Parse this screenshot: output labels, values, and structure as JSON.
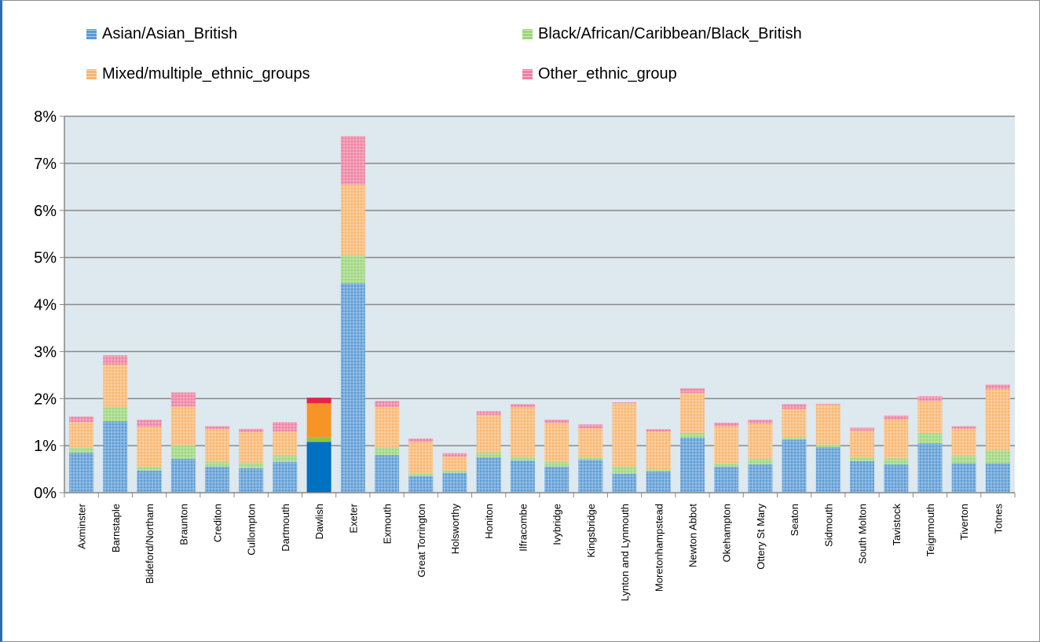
{
  "chart_data": {
    "type": "bar",
    "stacked": true,
    "title": "",
    "xlabel": "",
    "ylabel": "",
    "ylim": [
      0,
      8
    ],
    "y_ticks": [
      "0%",
      "1%",
      "2%",
      "3%",
      "4%",
      "5%",
      "6%",
      "7%",
      "8%"
    ],
    "grid": true,
    "legend_position": "top",
    "categories": [
      "Axminster",
      "Barnstaple",
      "Bideford/Northam",
      "Braunton",
      "Crediton",
      "Cullompton",
      "Dartmouth",
      "Dawlish",
      "Exeter",
      "Exmouth",
      "Great Torrington",
      "Holsworthy",
      "Honiton",
      "Ilfracombe",
      "Ivybridge",
      "Kingsbridge",
      "Lynton and Lynmouth",
      "Moretonhampstead",
      "Newton Abbot",
      "Okehampton",
      "Ottery St Mary",
      "Seaton",
      "Sidmouth",
      "South Molton",
      "Tavistock",
      "Teignmouth",
      "Tiverton",
      "Totnes"
    ],
    "highlighted_category": "Dawlish",
    "series": [
      {
        "name": "Asian/Asian_British",
        "color": "#5b9bd5",
        "solid_color": "#0070c0",
        "values": [
          0.85,
          1.52,
          0.47,
          0.72,
          0.55,
          0.52,
          0.65,
          1.08,
          4.45,
          0.8,
          0.35,
          0.42,
          0.75,
          0.68,
          0.55,
          0.7,
          0.4,
          0.45,
          1.17,
          0.55,
          0.6,
          1.13,
          0.97,
          0.67,
          0.6,
          1.05,
          0.63,
          0.63
        ]
      },
      {
        "name": "Black/African/Caribbean/Black_British",
        "color": "#9bd67b",
        "solid_color": "#8dc63f",
        "values": [
          0.1,
          0.3,
          0.08,
          0.28,
          0.1,
          0.12,
          0.15,
          0.1,
          0.6,
          0.17,
          0.05,
          0.05,
          0.1,
          0.08,
          0.1,
          0.05,
          0.15,
          0.05,
          0.1,
          0.08,
          0.12,
          0.05,
          0.05,
          0.08,
          0.13,
          0.22,
          0.15,
          0.27
        ]
      },
      {
        "name": "Mixed/multiple_ethnic_groups",
        "color": "#f8b66f",
        "solid_color": "#f79428",
        "values": [
          0.55,
          0.9,
          0.85,
          0.83,
          0.7,
          0.65,
          0.5,
          0.72,
          1.5,
          0.85,
          0.68,
          0.3,
          0.8,
          1.05,
          0.83,
          0.62,
          1.35,
          0.8,
          0.85,
          0.78,
          0.75,
          0.6,
          0.85,
          0.57,
          0.83,
          0.68,
          0.58,
          1.3
        ]
      },
      {
        "name": "Other_ethnic_group",
        "color": "#ee7fa0",
        "solid_color": "#e8234a",
        "values": [
          0.12,
          0.2,
          0.15,
          0.3,
          0.06,
          0.07,
          0.2,
          0.12,
          1.03,
          0.13,
          0.07,
          0.07,
          0.08,
          0.07,
          0.07,
          0.08,
          0.02,
          0.05,
          0.1,
          0.08,
          0.08,
          0.1,
          0.02,
          0.06,
          0.08,
          0.1,
          0.05,
          0.1
        ]
      }
    ]
  }
}
